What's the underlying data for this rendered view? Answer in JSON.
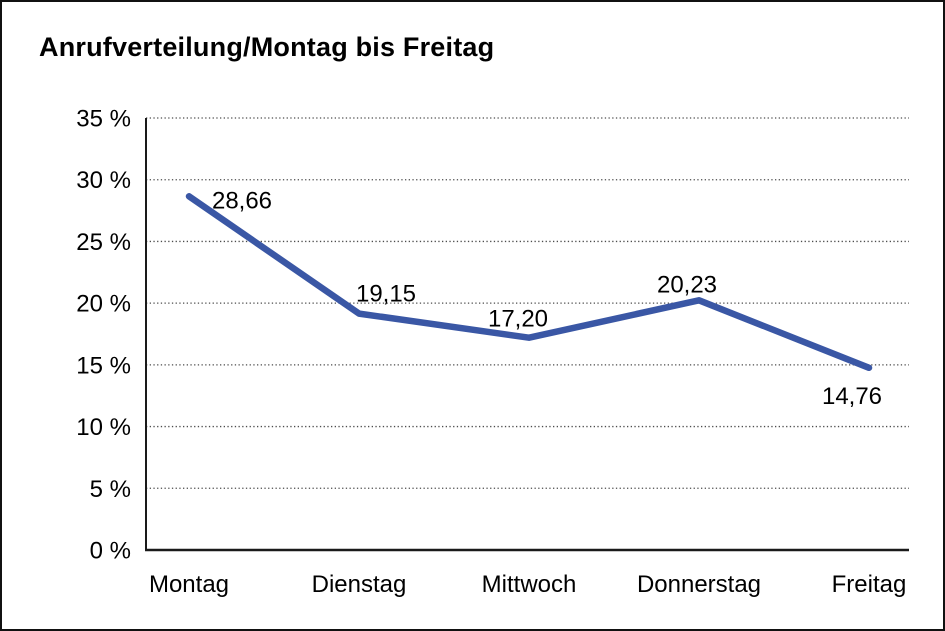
{
  "window": {
    "background": "#ffffff",
    "border_color": "#111111"
  },
  "chart_data": {
    "type": "line",
    "title": "Anrufverteilung/Montag bis Freitag",
    "categories": [
      "Montag",
      "Dienstag",
      "Mittwoch",
      "Donnerstag",
      "Freitag"
    ],
    "values": [
      28.66,
      19.15,
      17.2,
      20.23,
      14.76
    ],
    "point_labels": [
      "28,66",
      "19,15",
      "17,20",
      "20,23",
      "14,76"
    ],
    "yticks": [
      0,
      5,
      10,
      15,
      20,
      25,
      30,
      35
    ],
    "ytick_labels": [
      "0 %",
      "5 %",
      "10 %",
      "15 %",
      "20 %",
      "25 %",
      "30 %",
      "35 %"
    ],
    "ylim": [
      0,
      35
    ],
    "xlabel": "",
    "ylabel": "",
    "grid": "horizontal-dotted",
    "legend": "none",
    "line_color": "#3A57A5",
    "axis_color": "#1a1a1a",
    "grid_color": "#4d4d4d",
    "text_color": "#000000"
  }
}
